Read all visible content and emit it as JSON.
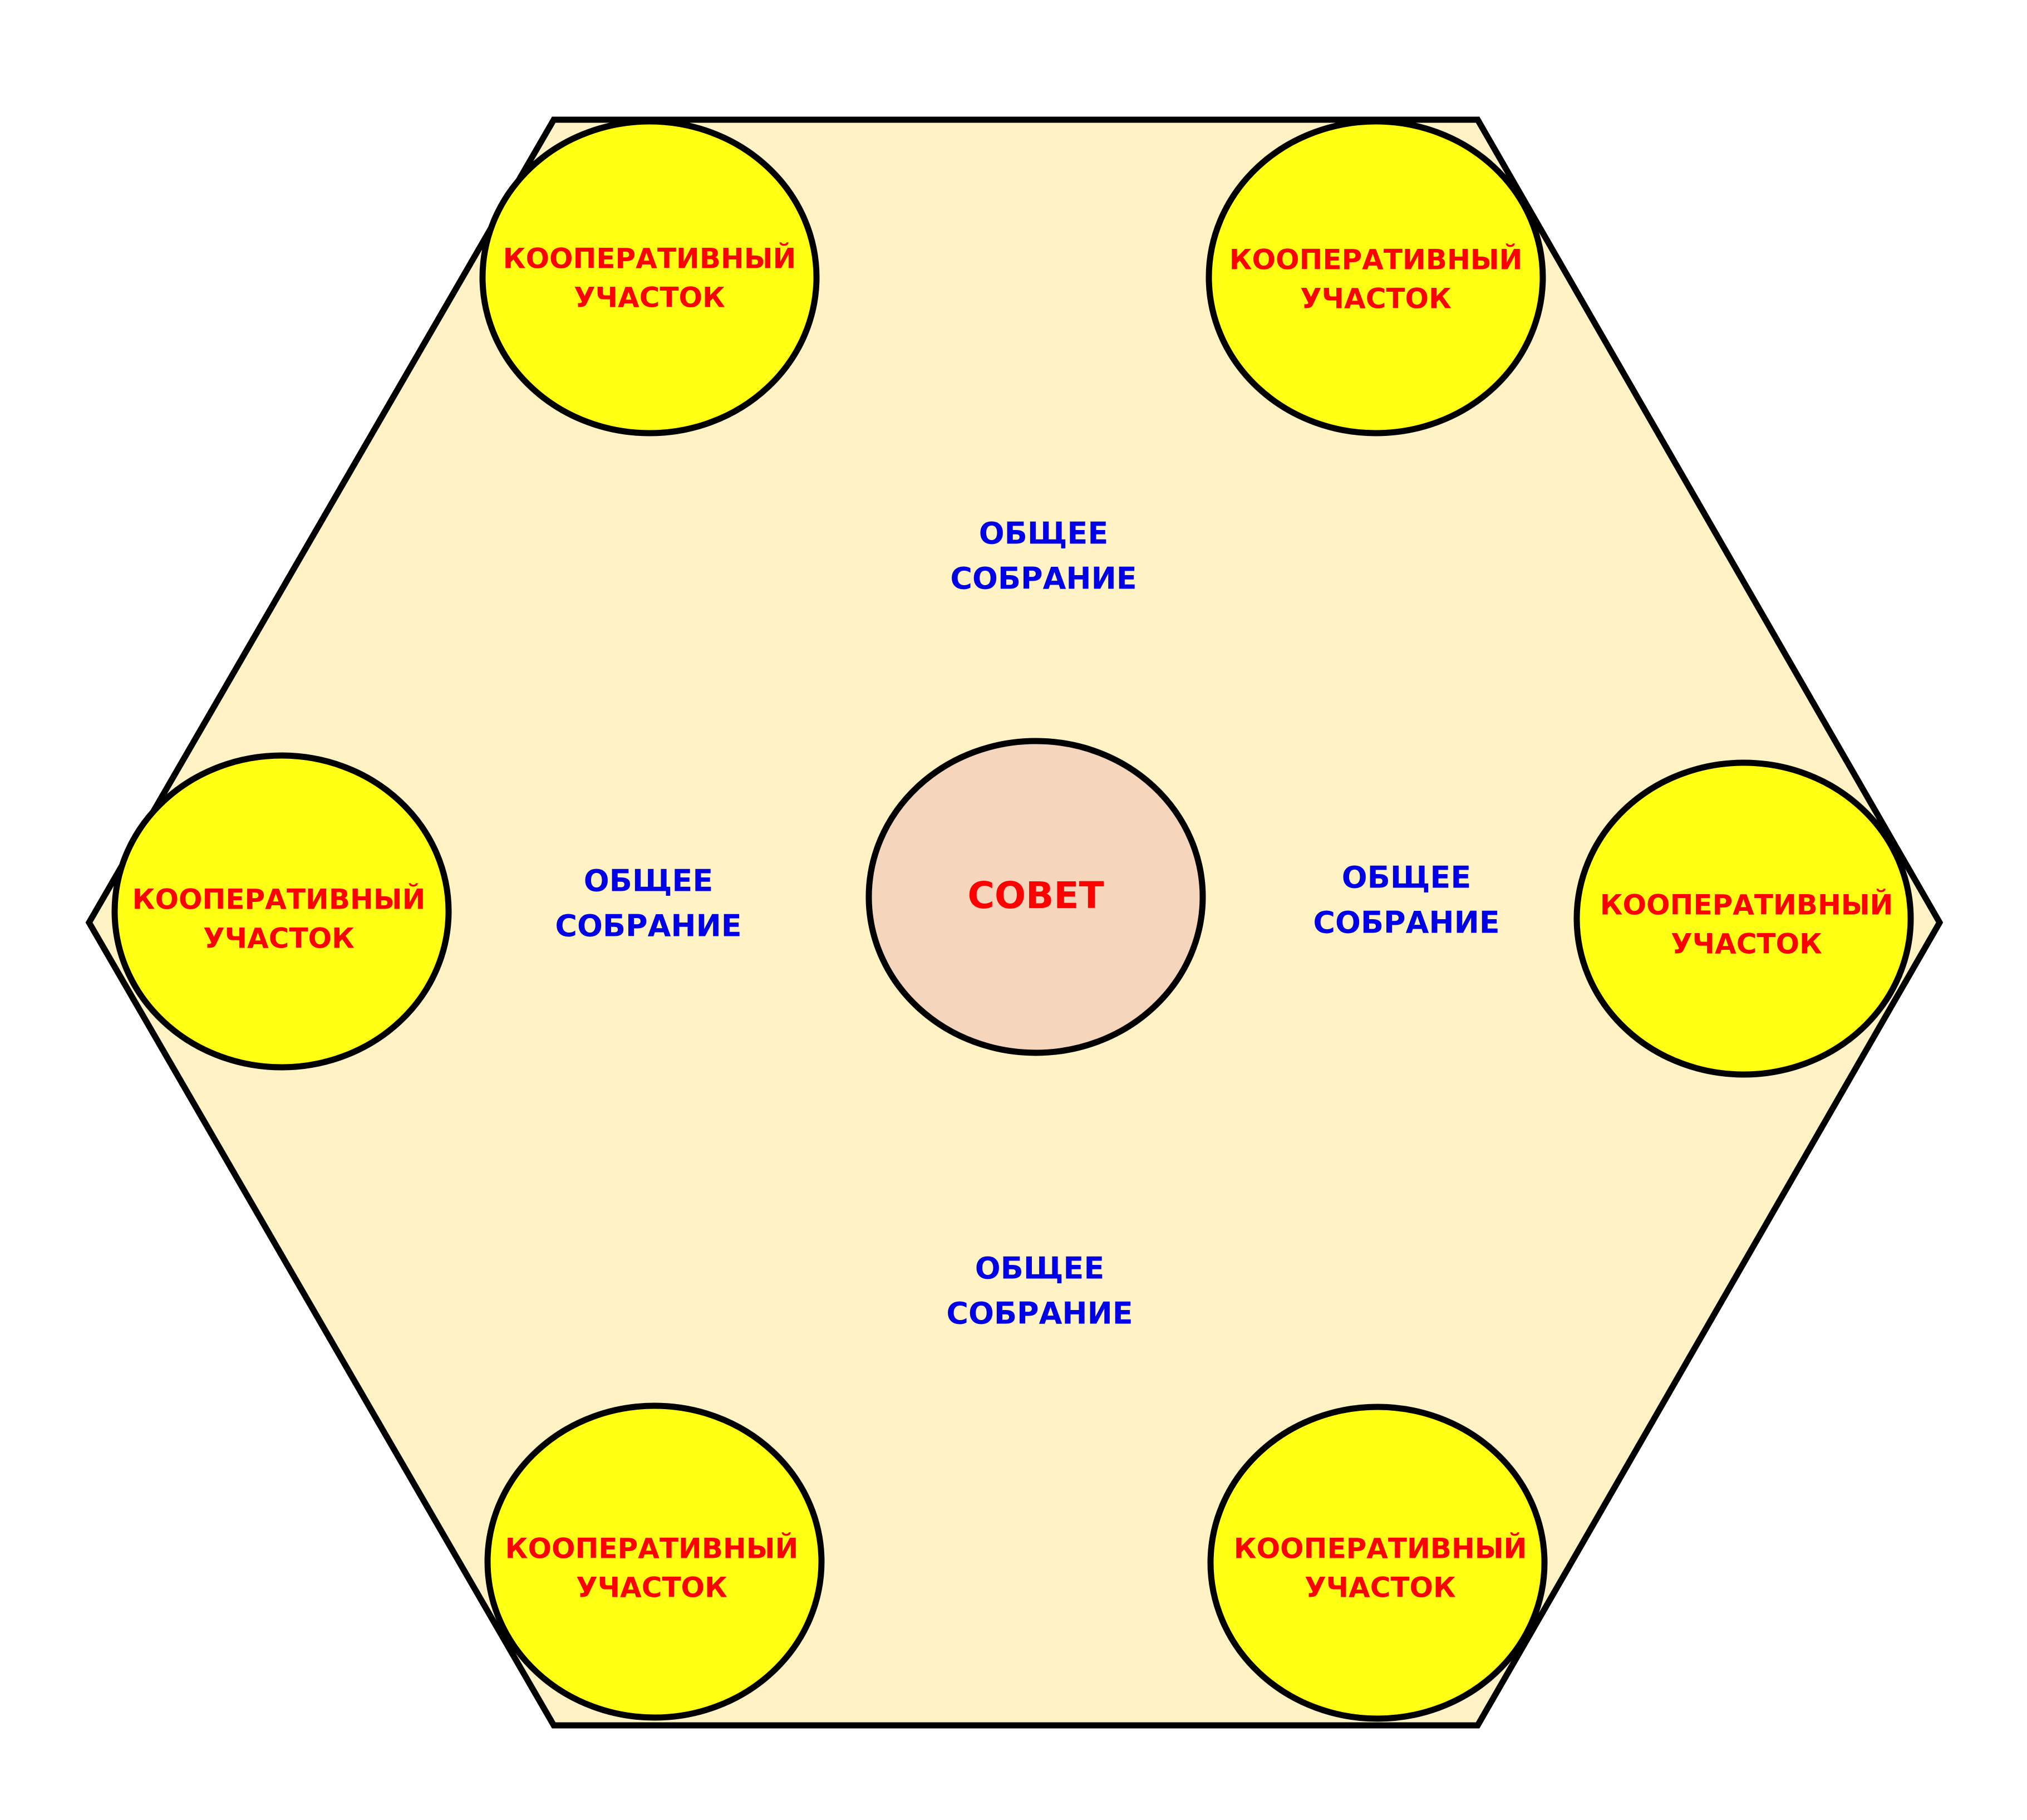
{
  "colors": {
    "hexagon_fill": "#FFF3C6",
    "hexagon_stroke": "#000000",
    "unit_fill": "#FFFF14",
    "unit_text": "#FF0000",
    "council_fill": "#F5D5BC",
    "council_text": "#FF0000",
    "assembly_text": "#0000E6"
  },
  "council": {
    "label": "СОВЕТ"
  },
  "assembly_labels": [
    {
      "line1": "ОБЩЕЕ",
      "line2": "СОБРАНИЕ"
    },
    {
      "line1": "ОБЩЕЕ",
      "line2": "СОБРАНИЕ"
    },
    {
      "line1": "ОБЩЕЕ",
      "line2": "СОБРАНИЕ"
    },
    {
      "line1": "ОБЩЕЕ",
      "line2": "СОБРАНИЕ"
    }
  ],
  "units": [
    {
      "line1": "КООПЕРАТИВНЫЙ",
      "line2": "УЧАСТОК"
    },
    {
      "line1": "КООПЕРАТИВНЫЙ",
      "line2": "УЧАСТОК"
    },
    {
      "line1": "КООПЕРАТИВНЫЙ",
      "line2": "УЧАСТОК"
    },
    {
      "line1": "КООПЕРАТИВНЫЙ",
      "line2": "УЧАСТОК"
    },
    {
      "line1": "КООПЕРАТИВНЫЙ",
      "line2": "УЧАСТОК"
    },
    {
      "line1": "КООПЕРАТИВНЫЙ",
      "line2": "УЧАСТОК"
    }
  ]
}
